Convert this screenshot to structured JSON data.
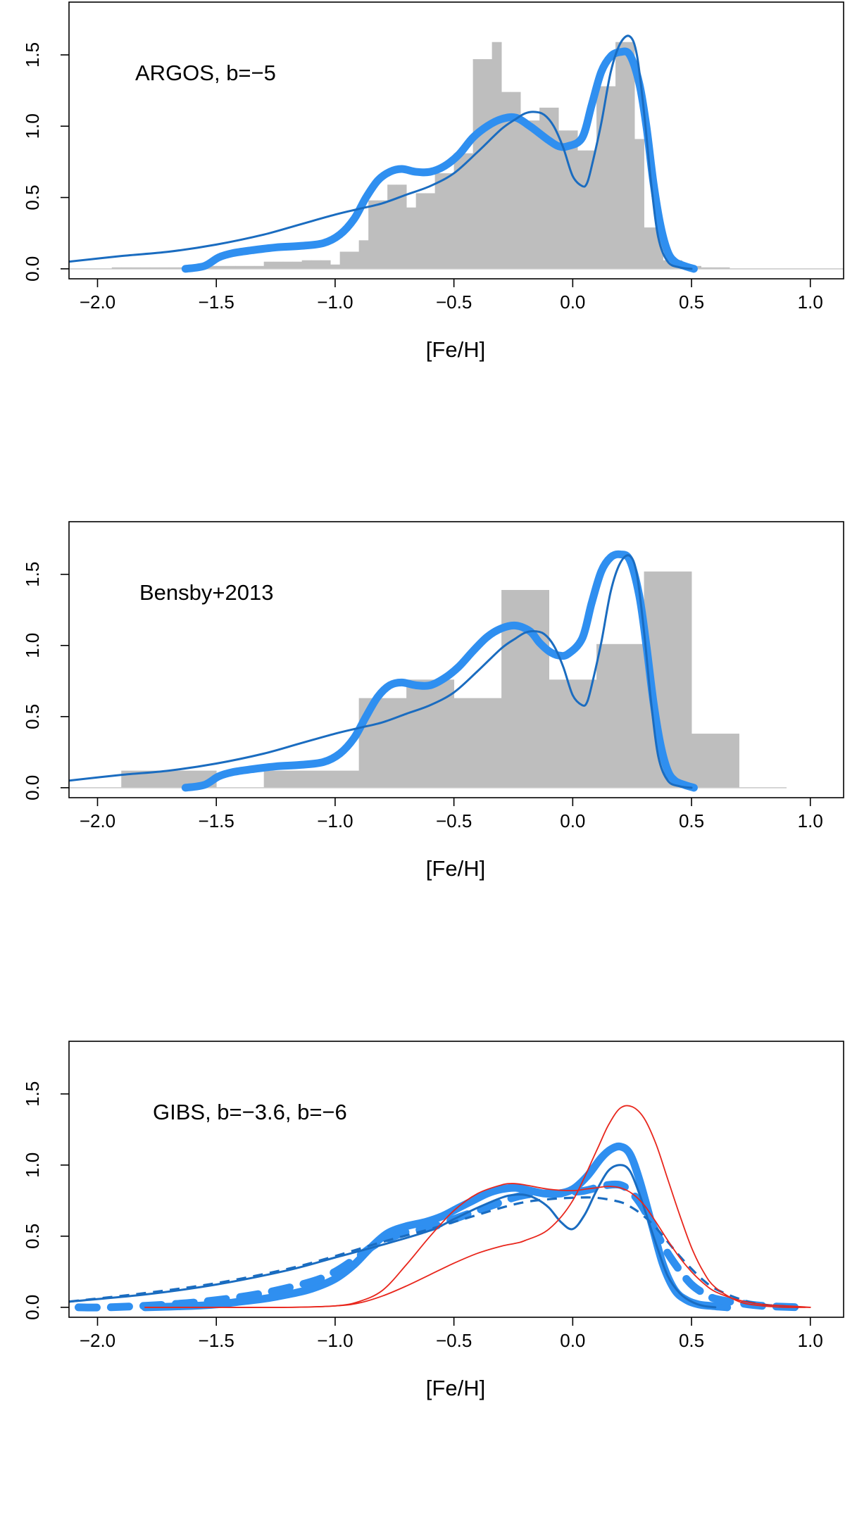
{
  "chart_data": [
    {
      "type": "line",
      "annotation": "ARGOS, b=−5",
      "xlabel": "[Fe/H]",
      "ylabel": "",
      "xlim": [
        -2.12,
        1.14
      ],
      "ylim": [
        -0.07,
        1.87
      ],
      "x_ticks": [
        -2.0,
        -1.5,
        -1.0,
        -0.5,
        0.0,
        0.5,
        1.0
      ],
      "x_tick_labels": [
        "−2.0",
        "−1.5",
        "−1.0",
        "−0.5",
        "0.0",
        "0.5",
        "1.0"
      ],
      "y_ticks": [
        0.0,
        0.5,
        1.0,
        1.5
      ],
      "y_tick_labels": [
        "0.0",
        "0.5",
        "1.0",
        "1.5"
      ],
      "baseline": {
        "from": -2.12,
        "to": 1.14,
        "y": 0
      },
      "histogram": {
        "edges": [
          -1.94,
          -1.9,
          -1.86,
          -1.82,
          -1.78,
          -1.74,
          -1.7,
          -1.66,
          -1.62,
          -1.58,
          -1.54,
          -1.5,
          -1.46,
          -1.42,
          -1.38,
          -1.34,
          -1.3,
          -1.26,
          -1.22,
          -1.18,
          -1.14,
          -1.1,
          -1.06,
          -1.02,
          -0.98,
          -0.94,
          -0.9,
          -0.86,
          -0.82,
          -0.78,
          -0.74,
          -0.7,
          -0.66,
          -0.62,
          -0.58,
          -0.54,
          -0.5,
          -0.46,
          -0.42,
          -0.38,
          -0.34,
          -0.3,
          -0.26,
          -0.22,
          -0.18,
          -0.14,
          -0.1,
          -0.06,
          -0.02,
          0.02,
          0.06,
          0.1,
          0.14,
          0.18,
          0.22,
          0.26,
          0.3,
          0.34,
          0.38,
          0.42,
          0.46,
          0.5,
          0.54,
          0.58,
          0.62,
          0.66
        ],
        "values": [
          0.01,
          0.01,
          0.01,
          0.01,
          0.01,
          0.01,
          0.01,
          0.01,
          0.02,
          0.02,
          0.02,
          0.02,
          0.02,
          0.02,
          0.02,
          0.02,
          0.05,
          0.05,
          0.05,
          0.05,
          0.06,
          0.06,
          0.06,
          0.03,
          0.12,
          0.12,
          0.2,
          0.48,
          0.48,
          0.59,
          0.59,
          0.43,
          0.53,
          0.53,
          0.67,
          0.67,
          0.81,
          0.81,
          1.47,
          1.47,
          1.59,
          1.24,
          1.24,
          1.04,
          1.04,
          1.13,
          1.13,
          0.97,
          0.97,
          0.83,
          0.83,
          1.28,
          1.28,
          1.59,
          1.59,
          0.91,
          0.29,
          0.29,
          0.06,
          0.06,
          0.02,
          0.02,
          0.01,
          0.01,
          0.01
        ]
      },
      "series": [
        {
          "name": "thick model",
          "style": "thick",
          "x": [
            -1.63,
            -1.55,
            -1.49,
            -1.43,
            -1.35,
            -1.25,
            -1.15,
            -1.05,
            -0.98,
            -0.92,
            -0.87,
            -0.82,
            -0.77,
            -0.72,
            -0.66,
            -0.6,
            -0.54,
            -0.48,
            -0.42,
            -0.36,
            -0.3,
            -0.24,
            -0.18,
            -0.14,
            -0.1,
            -0.06,
            -0.02,
            0.04,
            0.08,
            0.12,
            0.16,
            0.2,
            0.24,
            0.28,
            0.31,
            0.34,
            0.37,
            0.4,
            0.43,
            0.47,
            0.51
          ],
          "y": [
            0.0,
            0.02,
            0.08,
            0.11,
            0.13,
            0.15,
            0.16,
            0.18,
            0.24,
            0.35,
            0.5,
            0.62,
            0.68,
            0.7,
            0.68,
            0.68,
            0.72,
            0.8,
            0.92,
            1.0,
            1.05,
            1.06,
            1.0,
            0.95,
            0.9,
            0.86,
            0.86,
            0.92,
            1.15,
            1.38,
            1.49,
            1.52,
            1.5,
            1.3,
            1.0,
            0.6,
            0.3,
            0.12,
            0.05,
            0.02,
            0.0
          ]
        },
        {
          "name": "thin model",
          "style": "thin",
          "x": [
            -2.12,
            -1.9,
            -1.7,
            -1.5,
            -1.3,
            -1.15,
            -1.0,
            -0.9,
            -0.8,
            -0.7,
            -0.6,
            -0.5,
            -0.4,
            -0.3,
            -0.24,
            -0.2,
            -0.16,
            -0.12,
            -0.08,
            -0.04,
            0.0,
            0.04,
            0.06,
            0.08,
            0.12,
            0.16,
            0.2,
            0.24,
            0.27,
            0.3,
            0.33,
            0.36,
            0.4,
            0.45,
            0.5
          ],
          "y": [
            0.05,
            0.09,
            0.12,
            0.17,
            0.24,
            0.31,
            0.38,
            0.42,
            0.46,
            0.52,
            0.58,
            0.67,
            0.82,
            0.98,
            1.05,
            1.09,
            1.1,
            1.08,
            1.0,
            0.85,
            0.65,
            0.58,
            0.6,
            0.72,
            1.02,
            1.38,
            1.58,
            1.63,
            1.5,
            1.1,
            0.6,
            0.22,
            0.05,
            0.01,
            0.0
          ]
        }
      ]
    },
    {
      "type": "line",
      "annotation": "Bensby+2013",
      "xlabel": "[Fe/H]",
      "ylabel": "",
      "xlim": [
        -2.12,
        1.14
      ],
      "ylim": [
        -0.07,
        1.87
      ],
      "x_ticks": [
        -2.0,
        -1.5,
        -1.0,
        -0.5,
        0.0,
        0.5,
        1.0
      ],
      "x_tick_labels": [
        "−2.0",
        "−1.5",
        "−1.0",
        "−0.5",
        "0.0",
        "0.5",
        "1.0"
      ],
      "y_ticks": [
        0.0,
        0.5,
        1.0,
        1.5
      ],
      "y_tick_labels": [
        "0.0",
        "0.5",
        "1.0",
        "1.5"
      ],
      "baseline": {
        "from": -2.12,
        "to": 0.9,
        "y": 0
      },
      "histogram": {
        "edges": [
          -1.9,
          -1.5,
          -1.3,
          -0.9,
          -0.7,
          -0.5,
          -0.3,
          -0.1,
          0.1,
          0.3,
          0.5,
          0.7
        ],
        "values": [
          0.12,
          0.0,
          0.12,
          0.63,
          0.76,
          0.63,
          1.39,
          0.76,
          1.01,
          1.52,
          0.38
        ]
      },
      "series": [
        {
          "name": "thick model",
          "style": "thick",
          "x": [
            -1.63,
            -1.55,
            -1.49,
            -1.43,
            -1.35,
            -1.25,
            -1.15,
            -1.05,
            -0.98,
            -0.92,
            -0.87,
            -0.82,
            -0.77,
            -0.72,
            -0.66,
            -0.6,
            -0.54,
            -0.48,
            -0.42,
            -0.36,
            -0.3,
            -0.24,
            -0.18,
            -0.14,
            -0.1,
            -0.06,
            -0.02,
            0.04,
            0.08,
            0.12,
            0.16,
            0.2,
            0.24,
            0.28,
            0.31,
            0.34,
            0.37,
            0.4,
            0.43,
            0.47,
            0.51
          ],
          "y": [
            0.0,
            0.02,
            0.08,
            0.11,
            0.13,
            0.15,
            0.16,
            0.18,
            0.24,
            0.35,
            0.5,
            0.64,
            0.72,
            0.74,
            0.72,
            0.72,
            0.77,
            0.85,
            0.96,
            1.06,
            1.12,
            1.14,
            1.1,
            1.02,
            0.96,
            0.93,
            0.94,
            1.05,
            1.3,
            1.52,
            1.62,
            1.64,
            1.6,
            1.35,
            1.0,
            0.6,
            0.3,
            0.12,
            0.05,
            0.02,
            0.0
          ]
        },
        {
          "name": "thin model",
          "style": "thin",
          "x": [
            -2.12,
            -1.9,
            -1.7,
            -1.5,
            -1.3,
            -1.15,
            -1.0,
            -0.9,
            -0.8,
            -0.7,
            -0.6,
            -0.5,
            -0.4,
            -0.3,
            -0.24,
            -0.2,
            -0.16,
            -0.12,
            -0.08,
            -0.04,
            0.0,
            0.04,
            0.06,
            0.08,
            0.12,
            0.16,
            0.2,
            0.24,
            0.27,
            0.3,
            0.33,
            0.36,
            0.4,
            0.45,
            0.5
          ],
          "y": [
            0.05,
            0.09,
            0.12,
            0.17,
            0.24,
            0.31,
            0.38,
            0.42,
            0.46,
            0.52,
            0.58,
            0.67,
            0.82,
            0.98,
            1.05,
            1.09,
            1.1,
            1.08,
            1.0,
            0.85,
            0.65,
            0.58,
            0.6,
            0.72,
            1.02,
            1.38,
            1.58,
            1.63,
            1.5,
            1.1,
            0.6,
            0.22,
            0.05,
            0.01,
            0.0
          ]
        }
      ]
    },
    {
      "type": "line",
      "annotation": "GIBS, b=−3.6, b=−6",
      "xlabel": "[Fe/H]",
      "ylabel": "",
      "xlim": [
        -2.12,
        1.14
      ],
      "ylim": [
        -0.07,
        1.87
      ],
      "x_ticks": [
        -2.0,
        -1.5,
        -1.0,
        -0.5,
        0.0,
        0.5,
        1.0
      ],
      "x_tick_labels": [
        "−2.0",
        "−1.5",
        "−1.0",
        "−0.5",
        "0.0",
        "0.5",
        "1.0"
      ],
      "y_ticks": [
        0.0,
        0.5,
        1.0,
        1.5
      ],
      "y_tick_labels": [
        "0.0",
        "0.5",
        "1.0",
        "1.5"
      ],
      "series": [
        {
          "name": "thick model b=-3.6",
          "style": "thick",
          "x": [
            -1.8,
            -1.6,
            -1.5,
            -1.4,
            -1.3,
            -1.2,
            -1.1,
            -1.0,
            -0.92,
            -0.85,
            -0.78,
            -0.7,
            -0.62,
            -0.55,
            -0.48,
            -0.42,
            -0.36,
            -0.3,
            -0.24,
            -0.18,
            -0.12,
            -0.06,
            0.0,
            0.06,
            0.12,
            0.16,
            0.2,
            0.24,
            0.28,
            0.33,
            0.38,
            0.43,
            0.48,
            0.53,
            0.58,
            0.65
          ],
          "y": [
            0.0,
            0.01,
            0.02,
            0.04,
            0.06,
            0.09,
            0.13,
            0.2,
            0.3,
            0.42,
            0.52,
            0.57,
            0.6,
            0.64,
            0.7,
            0.75,
            0.8,
            0.83,
            0.84,
            0.82,
            0.8,
            0.8,
            0.83,
            0.92,
            1.05,
            1.11,
            1.13,
            1.08,
            0.9,
            0.6,
            0.3,
            0.12,
            0.05,
            0.02,
            0.01,
            0.0
          ]
        },
        {
          "name": "thick dashed b=-6",
          "style": "thick-dashed",
          "x": [
            -2.08,
            -1.95,
            -1.7,
            -1.5,
            -1.3,
            -1.1,
            -1.0,
            -0.9,
            -0.85,
            -0.8,
            -0.75,
            -0.7,
            -0.6,
            -0.5,
            -0.4,
            -0.3,
            -0.25,
            -0.2,
            -0.15,
            -0.1,
            -0.05,
            0.0,
            0.05,
            0.1,
            0.15,
            0.2,
            0.24,
            0.28,
            0.32,
            0.36,
            0.4,
            0.45,
            0.5,
            0.55,
            0.6,
            0.7,
            0.8,
            0.95
          ],
          "y": [
            0.0,
            0.0,
            0.02,
            0.05,
            0.1,
            0.18,
            0.25,
            0.36,
            0.42,
            0.47,
            0.5,
            0.53,
            0.56,
            0.62,
            0.68,
            0.74,
            0.77,
            0.79,
            0.8,
            0.8,
            0.8,
            0.81,
            0.82,
            0.84,
            0.86,
            0.86,
            0.82,
            0.74,
            0.63,
            0.5,
            0.38,
            0.26,
            0.16,
            0.1,
            0.06,
            0.03,
            0.01,
            0.0
          ]
        },
        {
          "name": "thin model",
          "style": "thin",
          "x": [
            -2.12,
            -1.8,
            -1.5,
            -1.2,
            -1.0,
            -0.8,
            -0.6,
            -0.5,
            -0.4,
            -0.3,
            -0.25,
            -0.2,
            -0.15,
            -0.1,
            -0.05,
            0.0,
            0.05,
            0.1,
            0.15,
            0.2,
            0.24,
            0.28,
            0.32,
            0.36,
            0.4,
            0.45,
            0.5,
            0.55,
            0.6
          ],
          "y": [
            0.04,
            0.09,
            0.16,
            0.26,
            0.35,
            0.44,
            0.54,
            0.62,
            0.7,
            0.77,
            0.79,
            0.79,
            0.76,
            0.7,
            0.6,
            0.55,
            0.65,
            0.82,
            0.96,
            1.0,
            0.96,
            0.8,
            0.6,
            0.4,
            0.22,
            0.1,
            0.04,
            0.01,
            0.0
          ]
        },
        {
          "name": "thin dashed model",
          "style": "thin-dashed",
          "x": [
            -2.12,
            -1.8,
            -1.5,
            -1.2,
            -1.0,
            -0.8,
            -0.6,
            -0.5,
            -0.4,
            -0.3,
            -0.2,
            -0.1,
            0.0,
            0.1,
            0.2,
            0.25,
            0.3,
            0.35,
            0.4,
            0.45,
            0.5,
            0.55,
            0.6,
            0.7,
            0.8,
            0.95
          ],
          "y": [
            0.04,
            0.1,
            0.17,
            0.27,
            0.36,
            0.46,
            0.55,
            0.6,
            0.65,
            0.7,
            0.74,
            0.76,
            0.77,
            0.77,
            0.74,
            0.7,
            0.64,
            0.56,
            0.46,
            0.36,
            0.27,
            0.19,
            0.13,
            0.06,
            0.02,
            0.0
          ]
        },
        {
          "name": "red model peaked",
          "style": "red",
          "x": [
            -1.8,
            -1.5,
            -1.2,
            -1.0,
            -0.9,
            -0.8,
            -0.7,
            -0.6,
            -0.5,
            -0.4,
            -0.3,
            -0.24,
            -0.2,
            -0.1,
            0.0,
            0.1,
            0.15,
            0.2,
            0.25,
            0.3,
            0.35,
            0.4,
            0.45,
            0.5,
            0.55,
            0.6,
            0.7,
            0.8,
            0.9,
            1.0
          ],
          "y": [
            0.0,
            0.0,
            0.0,
            0.01,
            0.03,
            0.08,
            0.15,
            0.23,
            0.31,
            0.38,
            0.43,
            0.45,
            0.47,
            0.55,
            0.75,
            1.1,
            1.28,
            1.4,
            1.41,
            1.33,
            1.15,
            0.9,
            0.65,
            0.42,
            0.25,
            0.14,
            0.04,
            0.01,
            0.0,
            0.0
          ]
        },
        {
          "name": "red model broad",
          "style": "red",
          "x": [
            -1.8,
            -1.5,
            -1.2,
            -1.0,
            -0.9,
            -0.8,
            -0.7,
            -0.6,
            -0.5,
            -0.4,
            -0.3,
            -0.25,
            -0.2,
            -0.1,
            0.0,
            0.05,
            0.1,
            0.15,
            0.2,
            0.25,
            0.3,
            0.35,
            0.4,
            0.45,
            0.5,
            0.55,
            0.6,
            0.7,
            0.8,
            0.9,
            1.0
          ],
          "y": [
            0.0,
            0.0,
            0.0,
            0.01,
            0.04,
            0.12,
            0.3,
            0.5,
            0.68,
            0.8,
            0.86,
            0.87,
            0.86,
            0.83,
            0.82,
            0.83,
            0.84,
            0.85,
            0.84,
            0.8,
            0.72,
            0.6,
            0.47,
            0.35,
            0.25,
            0.17,
            0.11,
            0.05,
            0.02,
            0.01,
            0.0
          ]
        }
      ]
    }
  ]
}
